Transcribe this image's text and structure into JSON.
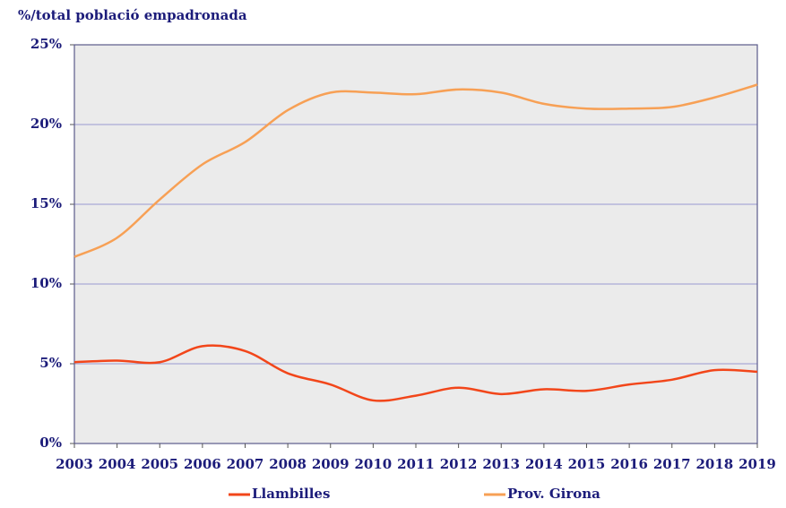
{
  "chart_data": {
    "type": "line",
    "title": "%/total població empadronada",
    "x": [
      2003,
      2004,
      2005,
      2006,
      2007,
      2008,
      2009,
      2010,
      2011,
      2012,
      2013,
      2014,
      2015,
      2016,
      2017,
      2018,
      2019
    ],
    "xlim": [
      2003,
      2019
    ],
    "xticks": [
      2003,
      2004,
      2005,
      2006,
      2007,
      2008,
      2009,
      2010,
      2011,
      2012,
      2013,
      2014,
      2015,
      2016,
      2017,
      2018,
      2019
    ],
    "ylim": [
      0,
      25
    ],
    "yticks": [
      {
        "value": 0,
        "label": "0%"
      },
      {
        "value": 5,
        "label": "5%"
      },
      {
        "value": 10,
        "label": "10%"
      },
      {
        "value": 15,
        "label": "15%"
      },
      {
        "value": 20,
        "label": "20%"
      },
      {
        "value": 25,
        "label": "25%"
      }
    ],
    "grid": true,
    "legend": "bottom",
    "series": [
      {
        "name": "Llambilles",
        "color": "#f2461a",
        "values": [
          5.1,
          5.2,
          5.1,
          6.1,
          5.8,
          4.4,
          3.7,
          2.7,
          3.0,
          3.5,
          3.1,
          3.4,
          3.3,
          3.7,
          4.0,
          4.6,
          4.5
        ]
      },
      {
        "name": "Prov. Girona",
        "color": "#f7a055",
        "values": [
          11.7,
          12.9,
          15.3,
          17.5,
          18.9,
          20.9,
          22.0,
          22.0,
          21.9,
          22.2,
          22.0,
          21.3,
          21.0,
          21.0,
          21.1,
          21.7,
          22.5
        ]
      }
    ]
  }
}
